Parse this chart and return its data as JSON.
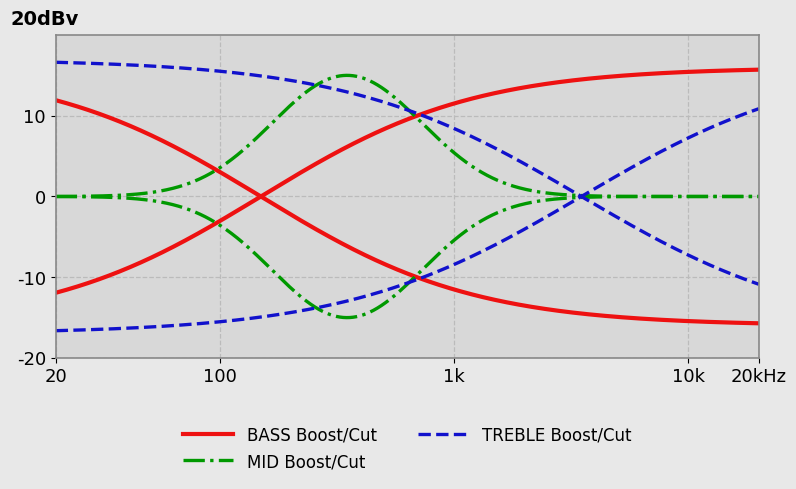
{
  "ylabel_text": "20dBv",
  "xlabel_ticks": [
    20,
    100,
    1000,
    10000,
    20000
  ],
  "xlabel_labels": [
    "20",
    "100",
    "1k",
    "10k",
    "20kHz"
  ],
  "ylim": [
    -20,
    20
  ],
  "xlim": [
    20,
    20000
  ],
  "yticks": [
    -20,
    -10,
    0,
    10
  ],
  "background_color": "#d8d8d8",
  "grid_color": "#ffffff",
  "bass_color": "#ee1111",
  "mid_color": "#009900",
  "treble_color": "#1111cc",
  "legend_bass": "BASS Boost/Cut",
  "legend_mid": "MID Boost/Cut",
  "legend_treble": "TREBLE Boost/Cut",
  "bass_peak_db": 16.0,
  "bass_fc": 150,
  "bass_slope": 2.2,
  "mid_peak_db": 15.0,
  "mid_fc": 350,
  "mid_sigma": 0.32,
  "treble_peak_db": 17.0,
  "treble_fc": 3500,
  "treble_slope": 2.0,
  "treble_max_f": 8000
}
